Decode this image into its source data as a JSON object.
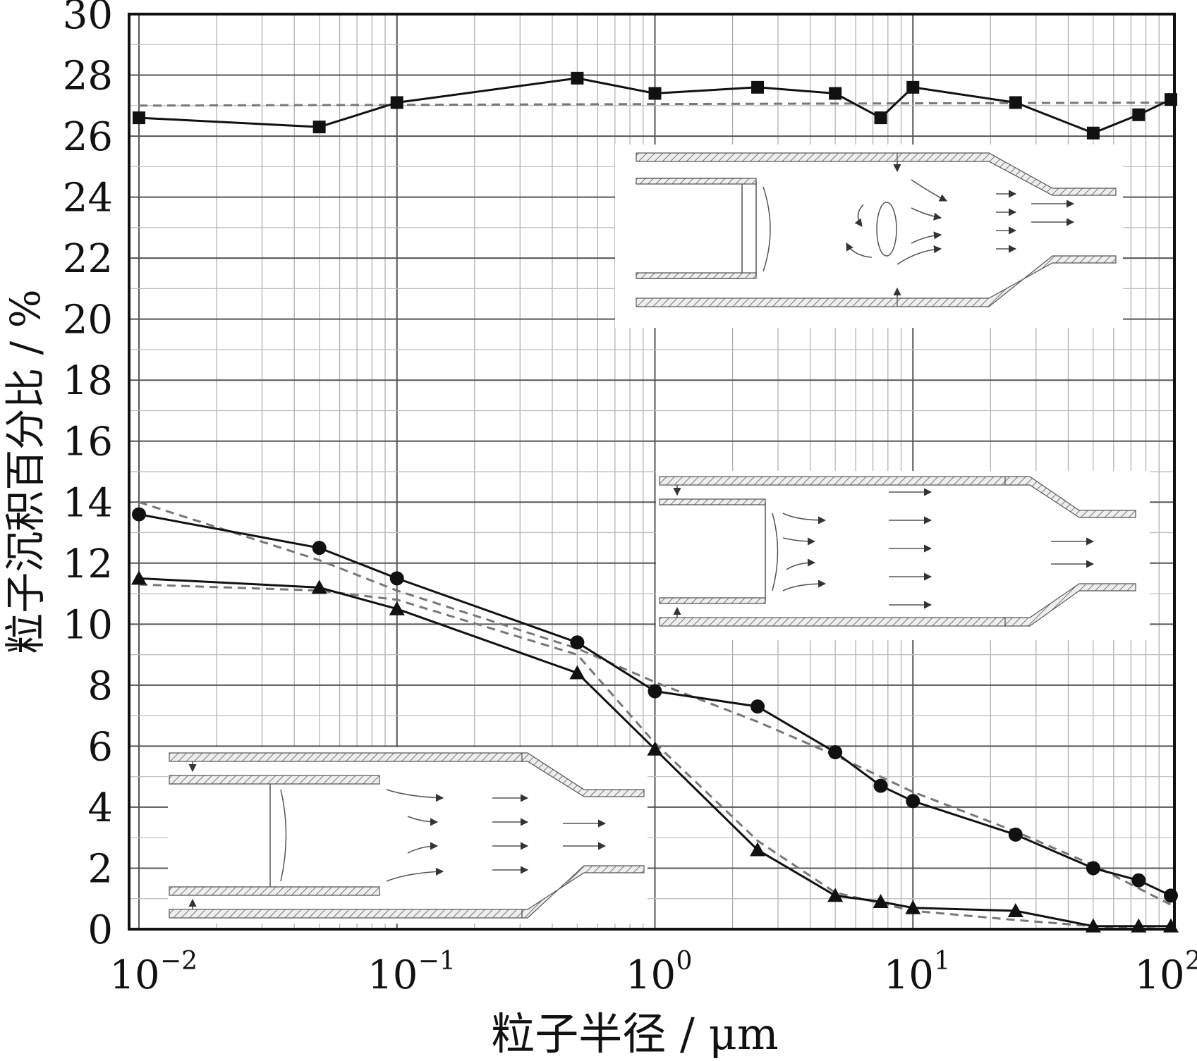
{
  "chart_data": {
    "type": "line",
    "x_scale": "log",
    "xlim": [
      0.01,
      100
    ],
    "ylim": [
      0,
      30
    ],
    "xlabel": "粒子半径 / μm",
    "ylabel": "粒子沉积百分比 / %",
    "x_ticks": [
      0.01,
      0.1,
      1,
      10,
      100
    ],
    "x_tick_labels": [
      {
        "base": "10",
        "exp": "−2"
      },
      {
        "base": "10",
        "exp": "−1"
      },
      {
        "base": "10",
        "exp": "0"
      },
      {
        "base": "10",
        "exp": "1"
      },
      {
        "base": "10",
        "exp": "2"
      }
    ],
    "y_ticks": [
      0,
      2,
      4,
      6,
      8,
      10,
      12,
      14,
      16,
      18,
      20,
      22,
      24,
      26,
      28,
      30
    ],
    "grid": true,
    "legend": "none",
    "series": [
      {
        "marker": "square",
        "color": "#111111",
        "x": [
          0.01,
          0.05,
          0.1,
          0.5,
          1,
          2.5,
          5,
          7.5,
          10,
          25,
          50,
          75,
          100
        ],
        "y": [
          26.6,
          26.3,
          27.1,
          27.9,
          27.4,
          27.6,
          27.4,
          26.6,
          27.6,
          27.1,
          26.1,
          26.7,
          27.2
        ]
      },
      {
        "marker": "circle",
        "color": "#111111",
        "x": [
          0.01,
          0.05,
          0.1,
          0.5,
          1,
          2.5,
          5,
          7.5,
          10,
          25,
          50,
          75,
          100
        ],
        "y": [
          13.6,
          12.5,
          11.5,
          9.4,
          7.8,
          7.3,
          5.8,
          4.7,
          4.2,
          3.1,
          2.0,
          1.6,
          1.1
        ]
      },
      {
        "marker": "triangle",
        "color": "#111111",
        "x": [
          0.01,
          0.05,
          0.1,
          0.5,
          1,
          2.5,
          5,
          7.5,
          10,
          25,
          50,
          75,
          100
        ],
        "y": [
          11.5,
          11.2,
          10.5,
          8.4,
          5.9,
          2.6,
          1.1,
          0.9,
          0.7,
          0.6,
          0.1,
          0.1,
          0.1
        ]
      }
    ],
    "fits": [
      {
        "style": "dashed",
        "color": "#777777",
        "x": [
          0.01,
          100
        ],
        "y": [
          27.0,
          27.1
        ]
      },
      {
        "style": "dashed",
        "color": "#777777",
        "x": [
          0.01,
          0.05,
          0.1,
          0.5,
          1,
          2.5,
          5,
          10,
          25,
          50,
          100
        ],
        "y": [
          14.0,
          12.1,
          11.1,
          9.2,
          8.1,
          6.8,
          5.7,
          4.5,
          3.2,
          2.1,
          0.8
        ]
      },
      {
        "style": "dashed",
        "color": "#777777",
        "x": [
          0.01,
          0.05,
          0.1,
          0.5,
          1,
          2.5,
          5,
          10,
          25,
          50,
          100
        ],
        "y": [
          11.3,
          11.1,
          10.8,
          9.0,
          6.1,
          2.9,
          1.2,
          0.6,
          0.3,
          0.1,
          0.0
        ]
      }
    ]
  }
}
